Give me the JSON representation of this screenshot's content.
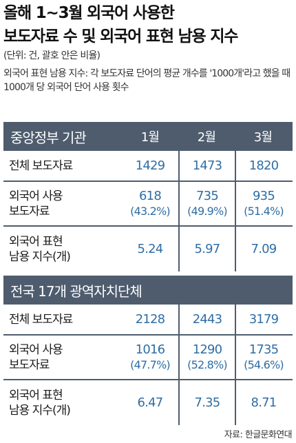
{
  "title_line1": "올해 1~3월 외국어 사용한",
  "title_line2": "보도자료 수 및 외국어 표현 남용 지수",
  "unit": "(단위: 건, 괄호 안은 비율)",
  "description": "외국어 표현 남용 지수: 각 보도자료 단어의 평균 개수를 '1000개'라고 했을 때 1000개 당 외국어 단어 사용 횟수",
  "source": "자료: 한글문화연대",
  "row_labels": {
    "total": "전체 보도자료",
    "foreign_line1": "외국어 사용",
    "foreign_line2": "보도자료",
    "index_line1": "외국어 표현",
    "index_line2": "남용 지수(개)"
  },
  "chart_data": {
    "type": "table",
    "columns": [
      "1월",
      "2월",
      "3월"
    ],
    "tables": [
      {
        "name": "중앙정부 기관",
        "total": [
          "1429",
          "1473",
          "1820"
        ],
        "foreign": [
          "618",
          "735",
          "935"
        ],
        "foreign_pct": [
          "(43.2%)",
          "(49.9%)",
          "(51.4%)"
        ],
        "index": [
          "5.24",
          "5.97",
          "7.09"
        ]
      },
      {
        "name": "전국 17개 광역자치단체",
        "total": [
          "2128",
          "2443",
          "3179"
        ],
        "foreign": [
          "1016",
          "1290",
          "1735"
        ],
        "foreign_pct": [
          "(47.7%)",
          "(52.8%)",
          "(54.6%)"
        ],
        "index": [
          "6.47",
          "7.35",
          "8.71"
        ]
      }
    ]
  },
  "colors": {
    "band": "#4e5c6e",
    "value": "#2e6da6"
  }
}
